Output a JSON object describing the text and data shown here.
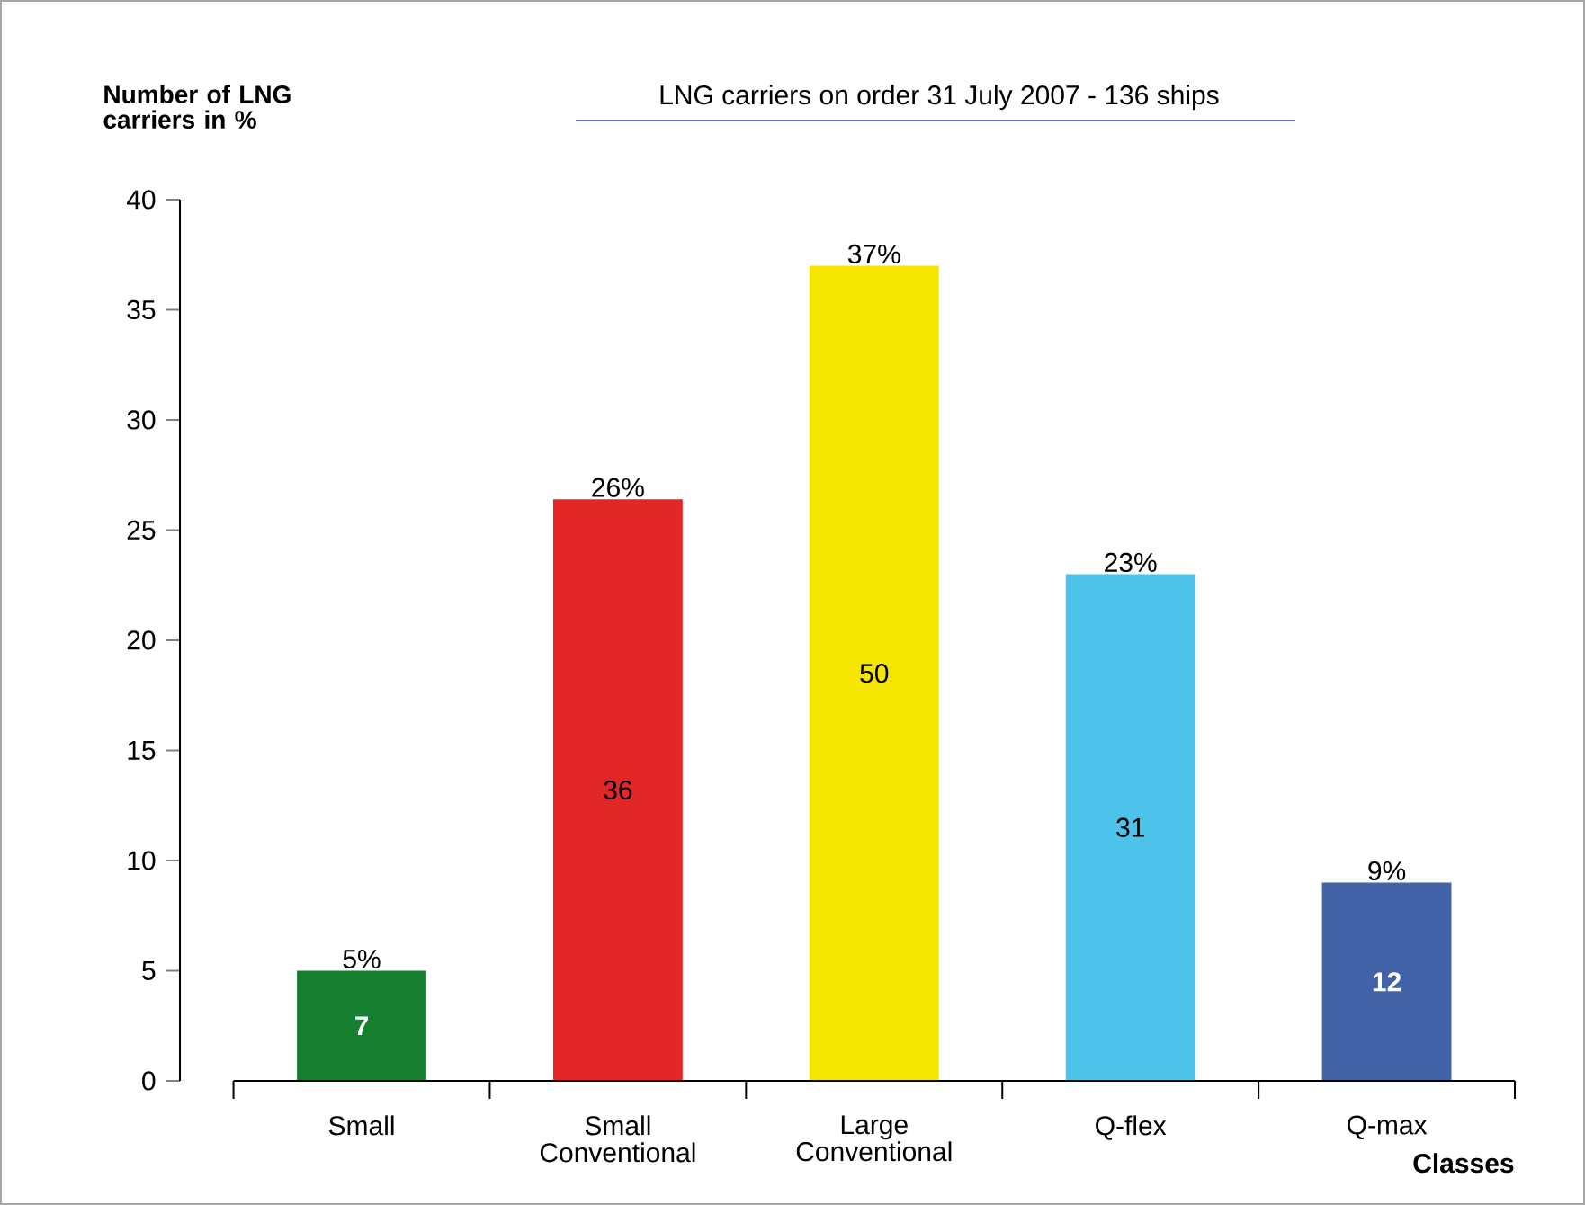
{
  "chart_data": {
    "type": "bar",
    "title": "LNG carriers on order 31 July 2007 - 136 ships",
    "ylabel": "Number of LNG carriers in %",
    "xlabel": "Classes",
    "categories": [
      "Small",
      "Small Conventional",
      "Large Conventional",
      "Q-flex",
      "Q-max"
    ],
    "values": [
      5,
      26.4,
      37,
      23,
      9
    ],
    "colors": [
      "#168030",
      "#e32626",
      "#f5e600",
      "#4dc3ea",
      "#4363a8"
    ],
    "value_labels": [
      "5%",
      "26%",
      "37%",
      "23%",
      "9%"
    ],
    "annotations": [
      "7",
      "36",
      "50",
      "31",
      "12"
    ],
    "ylim": [
      0,
      40
    ],
    "yticks": [
      0,
      5,
      10,
      15,
      20,
      25,
      30,
      35,
      40
    ],
    "grid": false
  }
}
